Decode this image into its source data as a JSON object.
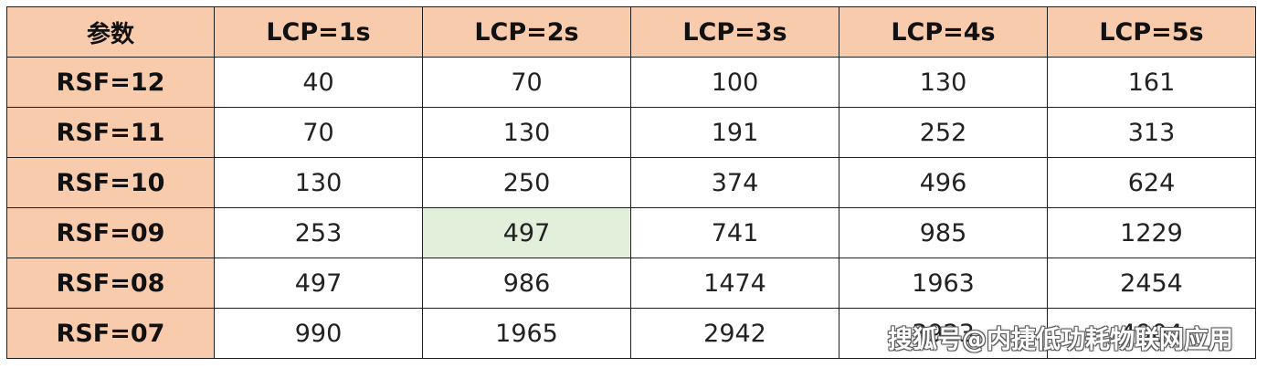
{
  "table": {
    "corner": "参数",
    "columns": [
      "LCP=1s",
      "LCP=2s",
      "LCP=3s",
      "LCP=4s",
      "LCP=5s"
    ],
    "rows": [
      {
        "label": "RSF=12",
        "values": [
          "40",
          "70",
          "100",
          "130",
          "161"
        ]
      },
      {
        "label": "RSF=11",
        "values": [
          "70",
          "130",
          "191",
          "252",
          "313"
        ]
      },
      {
        "label": "RSF=10",
        "values": [
          "130",
          "250",
          "374",
          "496",
          "624"
        ]
      },
      {
        "label": "RSF=09",
        "values": [
          "253",
          "497",
          "741",
          "985",
          "1229"
        ]
      },
      {
        "label": "RSF=08",
        "values": [
          "497",
          "986",
          "1474",
          "1963",
          "2454"
        ]
      },
      {
        "label": "RSF=07",
        "values": [
          "990",
          "1965",
          "2942",
          "3923",
          "4904"
        ]
      }
    ],
    "highlight": {
      "row": 3,
      "col": 1,
      "color": "#e2efda"
    },
    "header_color": "#f8cbad"
  },
  "watermark": {
    "text": "搜狐号@内捷低功耗物联网应用"
  }
}
